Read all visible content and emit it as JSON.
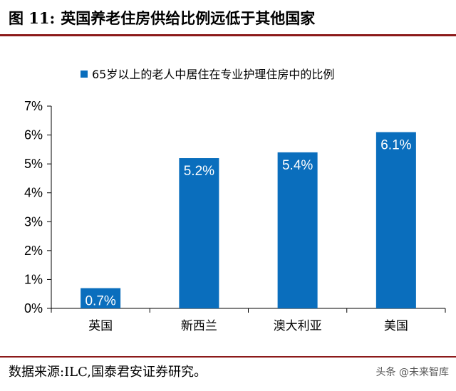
{
  "header": {
    "figure_number": "图 11:",
    "title": "英国养老住房供给比例远低于其他国家"
  },
  "footer": {
    "source": "数据来源:ILC,国泰君安证券研究。",
    "watermark": "头条 @未来智库"
  },
  "colors": {
    "bar": "#0a6ebd",
    "rule": "#8c1a1a",
    "bar_label": "#ffffff"
  },
  "chart_data": {
    "type": "bar",
    "categories": [
      "英国",
      "新西兰",
      "澳大利亚",
      "美国"
    ],
    "series": [
      {
        "name": "65岁以上的老人中居住在专业护理住房中的比例",
        "values": [
          0.7,
          5.2,
          5.4,
          6.1
        ],
        "labels": [
          "0.7%",
          "5.2%",
          "5.4%",
          "6.1%"
        ]
      }
    ],
    "y_ticks": [
      "0%",
      "1%",
      "2%",
      "3%",
      "4%",
      "5%",
      "6%",
      "7%"
    ],
    "ylim": [
      0,
      7
    ],
    "grid": false,
    "legend_position": "top"
  }
}
